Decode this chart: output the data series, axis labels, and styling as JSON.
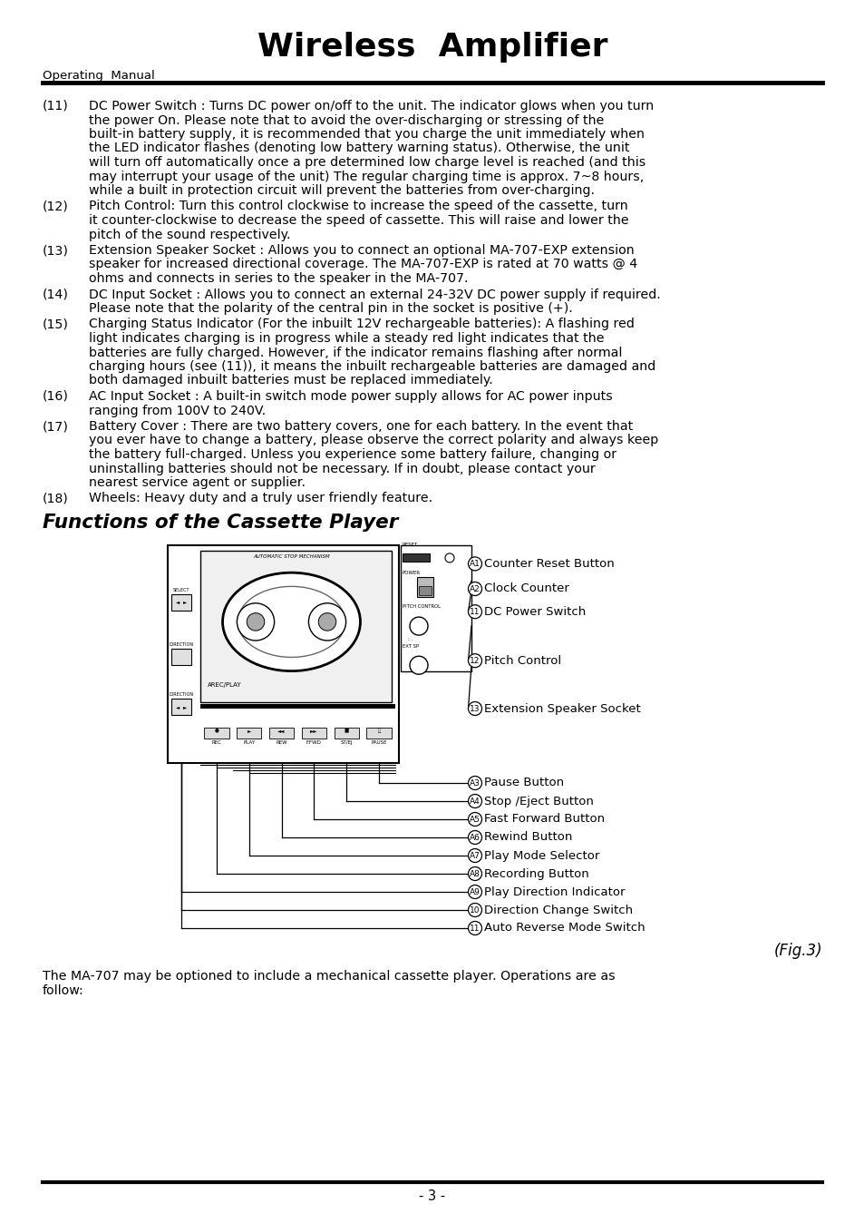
{
  "title": "Wireless  Amplifier",
  "subtitle": "Operating  Manual",
  "page_number": "- 3 -",
  "section_title": "Functions of the Cassette Player",
  "paragraphs": [
    {
      "num": "(11)",
      "text": "DC Power Switch : Turns DC power on/off to the unit. The indicator glows when you turn the power On. Please note that to avoid the over-discharging or stressing of the built-in battery supply, it is recommended that you charge the unit immediately when the LED indicator flashes (denoting low battery warning status). Otherwise, the unit will turn off automatically once a pre determined low charge level is reached (and this may interrupt your usage of the unit) The regular charging time is approx. 7~8 hours, while a built in protection circuit will prevent the batteries from over-charging."
    },
    {
      "num": "(12)",
      "text": "Pitch Control: Turn this control clockwise to increase the speed of the cassette, turn it counter-clockwise to decrease the speed of cassette. This will raise and lower the pitch of the sound respectively."
    },
    {
      "num": "(13)",
      "text": "Extension Speaker Socket : Allows you to connect an optional MA-707-EXP extension speaker for increased directional coverage. The MA-707-EXP is rated at 70 watts @ 4 ohms and connects in series to the speaker in the MA-707."
    },
    {
      "num": "(14)",
      "text": "DC Input Socket : Allows you to connect an external 24-32V DC power supply if required. Please note that the polarity of the central pin in the socket is positive (+)."
    },
    {
      "num": "(15)",
      "text": "Charging Status Indicator (For the inbuilt 12V rechargeable batteries): A flashing red light indicates charging is in progress while a steady red light indicates that the batteries are fully charged.  However, if the indicator remains flashing after normal charging hours (see (11)), it means the inbuilt rechargeable batteries are damaged and both damaged inbuilt batteries must be replaced immediately."
    },
    {
      "num": "(16)",
      "text": "AC Input Socket : A built-in switch mode power supply allows for AC power inputs ranging from 100V to 240V."
    },
    {
      "num": "(17)",
      "text": "Battery Cover : There are two battery covers, one for each battery. In the event that you ever have to change a battery, please observe the correct polarity and always keep the battery full-charged. Unless you experience some battery failure, changing or uninstalling batteries should not be necessary. If in doubt, please contact your nearest service agent or supplier."
    },
    {
      "num": "(18)",
      "text": "Wheels: Heavy duty and a truly user friendly feature."
    }
  ],
  "right_labels": [
    {
      "num": "A1",
      "text": "Counter Reset Button"
    },
    {
      "num": "A2",
      "text": "Clock Counter"
    },
    {
      "num": "11",
      "text": "DC Power Switch"
    },
    {
      "num": "12",
      "text": "Pitch Control"
    },
    {
      "num": "13",
      "text": "Extension Speaker Socket"
    }
  ],
  "bottom_labels": [
    {
      "num": "A3",
      "text": "Pause Button"
    },
    {
      "num": "A4",
      "text": "Stop /Eject Button"
    },
    {
      "num": "A5",
      "text": "Fast Forward Button"
    },
    {
      "num": "A6",
      "text": "Rewind Button"
    },
    {
      "num": "A7",
      "text": "Play Mode Selector"
    },
    {
      "num": "A8",
      "text": "Recording Button"
    },
    {
      "num": "A9",
      "text": "Play Direction Indicator"
    },
    {
      "num": "10",
      "text": "Direction Change Switch"
    },
    {
      "num": "11",
      "text": "Auto Reverse Mode Switch"
    }
  ],
  "fig_caption": "(Fig.3)",
  "footer_text1": "The MA-707 may be optioned to include a mechanical cassette player. Operations are as",
  "footer_text2": "follow:"
}
